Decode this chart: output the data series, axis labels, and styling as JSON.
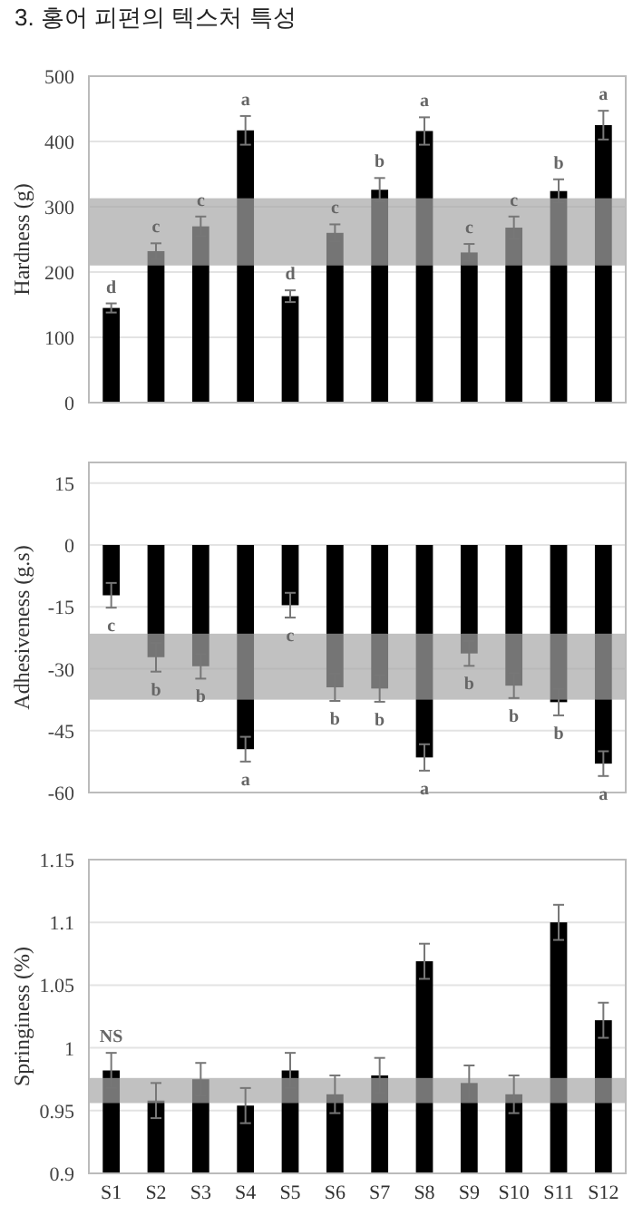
{
  "chart_data": [
    {
      "type": "bar",
      "title": "3. 홍어 피편의 텍스처 특성",
      "ylabel": "Hardness (g)",
      "categories": [
        null,
        null,
        null,
        null,
        null,
        null,
        null,
        null,
        null,
        null,
        null,
        null
      ],
      "series": [
        {
          "color": "#000000",
          "values": [
            145,
            232,
            270,
            417,
            163,
            260,
            326,
            416,
            230,
            268,
            324,
            425
          ],
          "errors": [
            7,
            12,
            15,
            22,
            9,
            13,
            18,
            21,
            13,
            17,
            18,
            22
          ]
        }
      ],
      "ylim": [
        0,
        500
      ],
      "yticks": [
        0,
        100,
        200,
        300,
        400,
        500
      ],
      "grid": "y",
      "tick_labels": "y",
      "bands": [
        {
          "axis": "y",
          "from": 210,
          "to": 313,
          "color": "#a6a6a6"
        }
      ],
      "annotations": [
        "d",
        "c",
        "c",
        "a",
        "d",
        "c",
        "b",
        "a",
        "c",
        "c",
        "b",
        "a"
      ]
    },
    {
      "type": "bar",
      "ylabel": "Adhesiveness (g.s)",
      "categories": [
        null,
        null,
        null,
        null,
        null,
        null,
        null,
        null,
        null,
        null,
        null,
        null
      ],
      "series": [
        {
          "color": "#000000",
          "values": [
            -12.2,
            -27.2,
            -29.4,
            -49.5,
            -14.6,
            -34.5,
            -34.8,
            -51.5,
            -26.3,
            -34.1,
            -38.1,
            -53
          ],
          "errors": [
            3,
            3.5,
            3,
            3,
            3,
            3.3,
            3.2,
            3.2,
            3,
            3,
            3.2,
            3
          ]
        }
      ],
      "ylim": [
        -60,
        20
      ],
      "yticks": [
        -60,
        -45,
        -30,
        -15,
        0,
        15
      ],
      "grid": "y",
      "tick_labels": "y",
      "bands": [
        {
          "axis": "y",
          "from": -37.5,
          "to": -21.5,
          "color": "#a6a6a6"
        }
      ],
      "annotations": [
        "c",
        "b",
        "b",
        "a",
        "c",
        "b",
        "b",
        "a",
        "b",
        "b",
        "b",
        "a"
      ]
    },
    {
      "type": "bar",
      "ylabel": "Springiness (%)",
      "categories": [
        "S1",
        "S2",
        "S3",
        "S4",
        "S5",
        "S6",
        "S7",
        "S8",
        "S9",
        "S10",
        "S11",
        "S12"
      ],
      "series": [
        {
          "color": "#000000",
          "values": [
            0.982,
            0.958,
            0.975,
            0.954,
            0.982,
            0.963,
            0.978,
            1.069,
            0.972,
            0.963,
            1.1,
            1.022
          ],
          "errors": [
            0.014,
            0.014,
            0.013,
            0.014,
            0.014,
            0.015,
            0.014,
            0.014,
            0.014,
            0.015,
            0.014,
            0.014
          ]
        }
      ],
      "ylim": [
        0.9,
        1.15
      ],
      "yticks": [
        0.9,
        0.95,
        1,
        1.05,
        1.1,
        1.15
      ],
      "grid": "y",
      "bands": [
        {
          "axis": "y",
          "from": 0.956,
          "to": 0.976,
          "color": "#a6a6a6"
        }
      ],
      "annotations": [
        "NS"
      ]
    }
  ]
}
